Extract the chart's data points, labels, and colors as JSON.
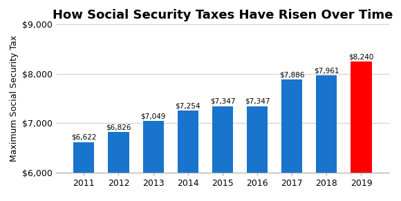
{
  "title": "How Social Security Taxes Have Risen Over Time",
  "ylabel": "Maximum Social Security Tax",
  "years": [
    2011,
    2012,
    2013,
    2014,
    2015,
    2016,
    2017,
    2018,
    2019
  ],
  "values": [
    6622,
    6826,
    7049,
    7254,
    7347,
    7347,
    7886,
    7961,
    8240
  ],
  "labels": [
    "$6,622",
    "$6,826",
    "$7,049",
    "$7,254",
    "$7,347",
    "$7,347",
    "$7,886",
    "$7,961",
    "$8,240"
  ],
  "bar_colors": [
    "#1874CD",
    "#1874CD",
    "#1874CD",
    "#1874CD",
    "#1874CD",
    "#1874CD",
    "#1874CD",
    "#1874CD",
    "#FF0000"
  ],
  "ylim": [
    6000,
    9000
  ],
  "yticks": [
    6000,
    7000,
    8000,
    9000
  ],
  "ytick_labels": [
    "$6,000",
    "$7,000",
    "$8,000",
    "$9,000"
  ],
  "background_color": "#ffffff",
  "title_fontsize": 13,
  "label_fontsize": 7.5,
  "axis_label_fontsize": 9,
  "tick_fontsize": 9
}
